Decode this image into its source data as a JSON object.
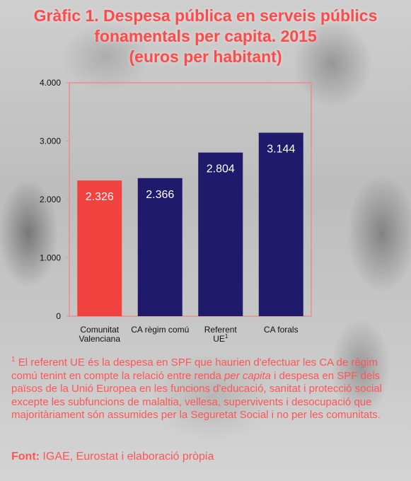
{
  "title": {
    "line1": "Gràfic 1. Despesa pública en serveis públics",
    "line2": "fonamentals per capita. 2015",
    "line3": "(euros per habitant)"
  },
  "colors": {
    "title": "#ff4a4a",
    "highlight_bar": "#f2423f",
    "bar": "#1f1a6b",
    "frame": "#f08a8a",
    "footnote": "#ff5555"
  },
  "chart_data": {
    "type": "bar",
    "categories": [
      {
        "lines": [
          "Comunitat",
          "Valenciana"
        ],
        "sup": ""
      },
      {
        "lines": [
          "CA règim comú"
        ],
        "sup": ""
      },
      {
        "lines": [
          "Referent",
          "UE"
        ],
        "sup": "1"
      },
      {
        "lines": [
          "CA forals"
        ],
        "sup": ""
      }
    ],
    "values": [
      2326,
      2366,
      2804,
      3144
    ],
    "data_labels": [
      "2.326",
      "2.366",
      "2.804",
      "3.144"
    ],
    "highlight_index": 0,
    "ylim": [
      0,
      4000
    ],
    "yticks": [
      0,
      1000,
      2000,
      3000,
      4000
    ],
    "ytick_labels": [
      "0",
      "1.000",
      "2.000",
      "3.000",
      "4.000"
    ],
    "xlabel": "",
    "ylabel": "",
    "grid": false
  },
  "footnote": {
    "marker": "1",
    "part1": " El referent UE és la despesa en SPF que haurien d'efectuar les CA de règim comú tenint en compte la relació entre renda ",
    "italic": "per capita",
    "part2": " i despesa en SPF dels països de la Unió Europea en les funcions d'educació, sanitat i protecció social excepte les subfuncions de malaltia, vellesa, supervivents i desocupació que majoritàriament són assumides per la Seguretat Social i no per les comunitats."
  },
  "source": {
    "label": "Font:",
    "text": " IGAE, Eurostat i elaboració pròpia"
  }
}
